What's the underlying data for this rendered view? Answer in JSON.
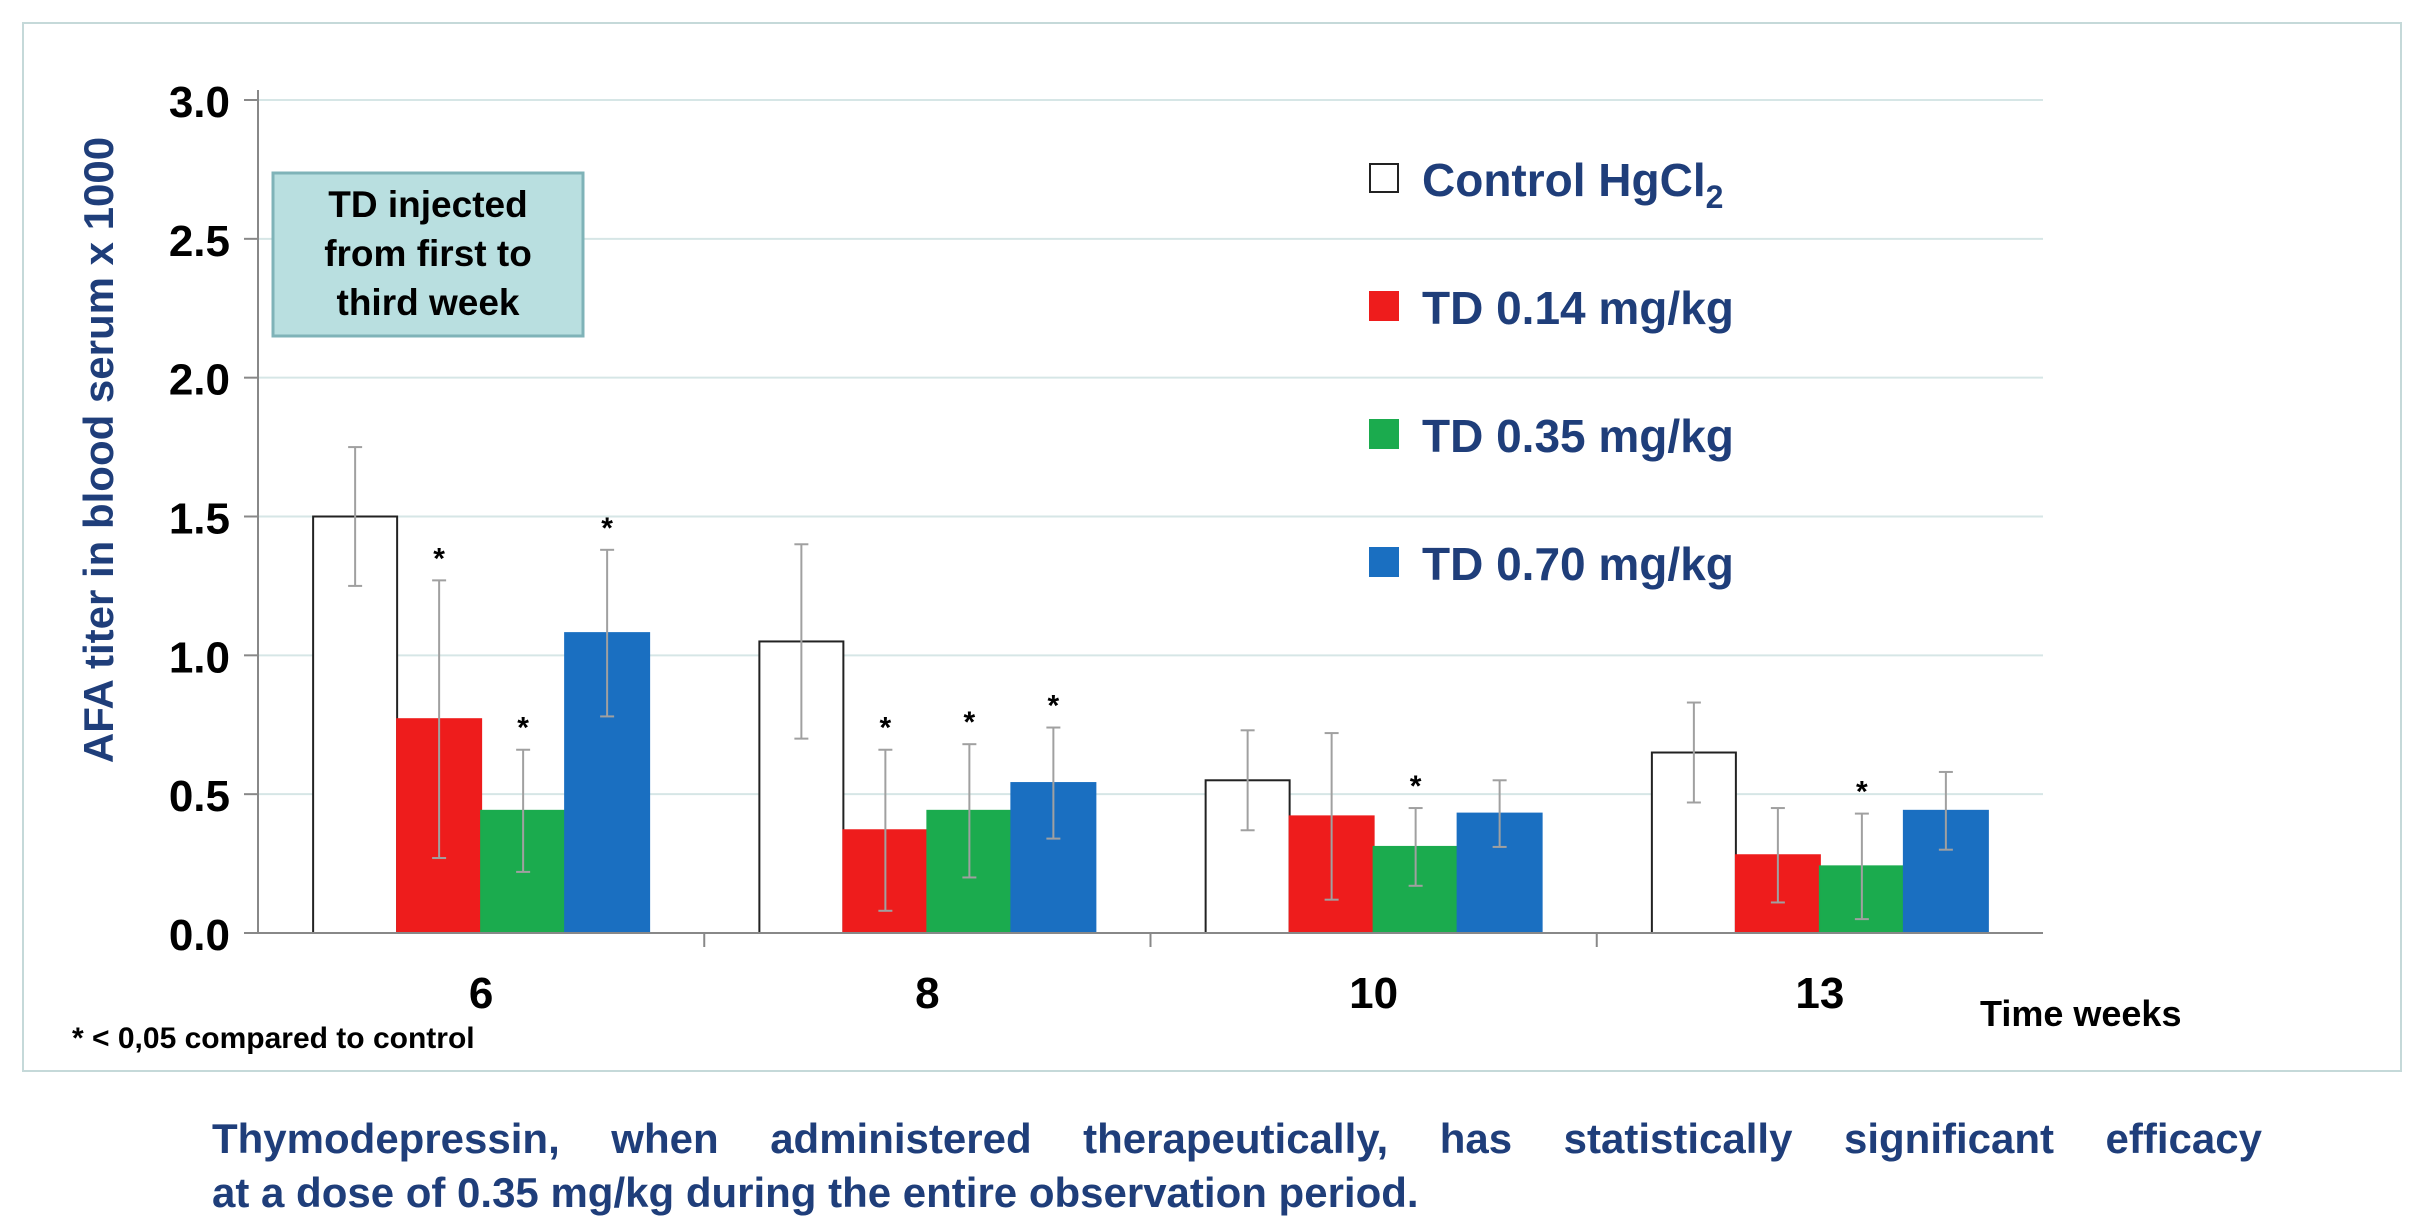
{
  "chart_data": {
    "type": "bar",
    "title": "",
    "xlabel": "Time weeks",
    "ylabel": "AFA titer in blood serum x 1000",
    "ylim": [
      0.0,
      3.0
    ],
    "yticks": [
      "3.0",
      "2.5",
      "2.0",
      "1.5",
      "1.0",
      "0.5",
      "0.0"
    ],
    "ytick_values": [
      3.0,
      2.5,
      2.0,
      1.5,
      1.0,
      0.5,
      0.0
    ],
    "categories": [
      "6",
      "8",
      "10",
      "13"
    ],
    "grid": true,
    "legend_position": "top-right",
    "series": [
      {
        "name": "Control HgCl",
        "subscript": "2",
        "color": "#ffffff",
        "values": [
          1.5,
          1.05,
          0.55,
          0.65
        ],
        "errors": [
          0.25,
          0.35,
          0.18,
          0.18
        ],
        "significant": [
          false,
          false,
          false,
          false
        ]
      },
      {
        "name": "TD 0.14 mg/kg",
        "subscript": "",
        "color": "#ee1c1c",
        "values": [
          0.77,
          0.37,
          0.42,
          0.28
        ],
        "errors": [
          0.5,
          0.29,
          0.3,
          0.17
        ],
        "significant": [
          true,
          true,
          false,
          false
        ]
      },
      {
        "name": "TD 0.35 mg/kg",
        "subscript": "",
        "color": "#1bab4e",
        "values": [
          0.44,
          0.44,
          0.31,
          0.24
        ],
        "errors": [
          0.22,
          0.24,
          0.14,
          0.19
        ],
        "significant": [
          true,
          true,
          true,
          true
        ]
      },
      {
        "name": "TD 0.70 mg/kg",
        "subscript": "",
        "color": "#1a6fc1",
        "values": [
          1.08,
          0.54,
          0.43,
          0.44
        ],
        "errors": [
          0.3,
          0.2,
          0.12,
          0.14
        ],
        "significant": [
          true,
          true,
          false,
          false
        ]
      }
    ],
    "annotation_box": [
      "TD injected",
      "from first to",
      "third  week"
    ],
    "significance_marker": "*",
    "footnote": "* < 0,05 compared to control"
  },
  "caption": {
    "line1": "Thymodepressin, when administered therapeutically, has statistically significant efficacy",
    "line2": "at a dose of 0.35 mg/kg during the entire observation period."
  },
  "colors": {
    "axis_text": "#000000",
    "ylabel_text": "#1f3e7a",
    "legend_text": "#1f3e7a",
    "annotation_fill": "#b9dfe0",
    "annotation_border": "#7fb3b8",
    "gridline": "#d6e6e6",
    "error_bar": "#a0a0a0"
  }
}
